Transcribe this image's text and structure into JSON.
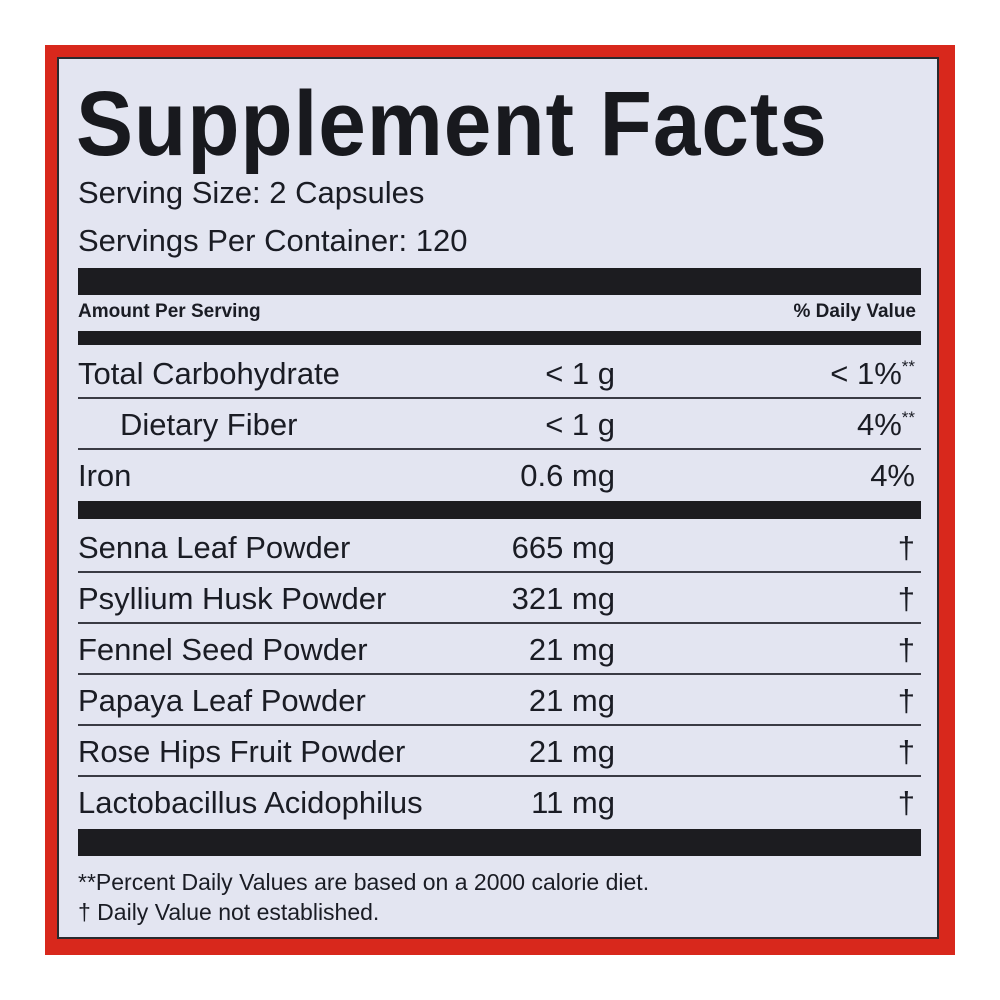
{
  "title": "Supplement Facts",
  "serving_size": "Serving Size: 2 Capsules",
  "servings_per_container": "Servings Per Container: 120",
  "header": {
    "amount": "Amount Per Serving",
    "daily_value": "% Daily Value"
  },
  "nutrients": [
    {
      "name": "Total Carbohydrate",
      "amount": "< 1 g",
      "dv": "< 1%",
      "mark": "**"
    },
    {
      "name": "Dietary Fiber",
      "amount": "< 1 g",
      "dv": "4%",
      "mark": "**"
    },
    {
      "name": "Iron",
      "amount": "0.6 mg",
      "dv": "4%",
      "mark": ""
    }
  ],
  "ingredients": [
    {
      "name": "Senna Leaf Powder",
      "amount": "665 mg",
      "dv": "†"
    },
    {
      "name": "Psyllium Husk Powder",
      "amount": "321 mg",
      "dv": "†"
    },
    {
      "name": "Fennel Seed Powder",
      "amount": "21 mg",
      "dv": "†"
    },
    {
      "name": "Papaya Leaf Powder",
      "amount": "21 mg",
      "dv": "†"
    },
    {
      "name": "Rose Hips Fruit Powder",
      "amount": "21 mg",
      "dv": "†"
    },
    {
      "name": "Lactobacillus Acidophilus",
      "amount": "11 mg",
      "dv": "†"
    }
  ],
  "footnotes": [
    "**Percent Daily Values are based on a 2000 calorie diet.",
    "† Daily Value not established."
  ],
  "colors": {
    "border": "#d8281c",
    "panel": "#e3e5f1",
    "ink": "#1a1c24"
  }
}
